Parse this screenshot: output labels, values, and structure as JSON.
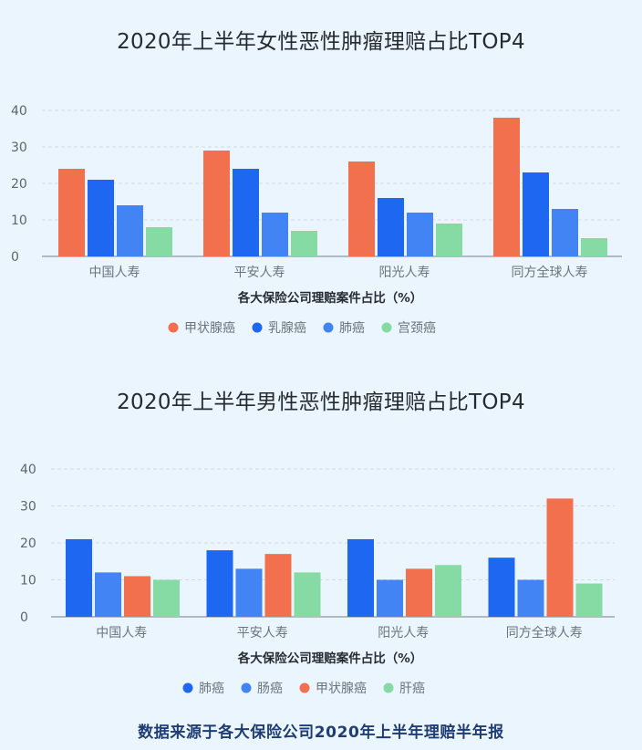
{
  "chart_data": [
    {
      "type": "bar",
      "title": "2020年上半年女性恶性肿瘤理赔占比TOP4",
      "xlabel": "各大保险公司理赔案件占比（%）",
      "ylabel": "",
      "ylim": [
        0,
        40
      ],
      "yticks": [
        0,
        10,
        20,
        30,
        40
      ],
      "grid": true,
      "legend_position": "bottom",
      "categories": [
        "中国人寿",
        "平安人寿",
        "阳光人寿",
        "同方全球人寿"
      ],
      "series": [
        {
          "name": "甲状腺癌",
          "color": "#f2704e",
          "values": [
            24,
            29,
            26,
            38
          ]
        },
        {
          "name": "乳腺癌",
          "color": "#1e67f0",
          "values": [
            21,
            24,
            16,
            23
          ]
        },
        {
          "name": "肺癌",
          "color": "#4384f5",
          "values": [
            14,
            12,
            12,
            13
          ]
        },
        {
          "name": "宫颈癌",
          "color": "#86dba4",
          "values": [
            8,
            7,
            9,
            5
          ]
        }
      ]
    },
    {
      "type": "bar",
      "title": "2020年上半年男性恶性肿瘤理赔占比TOP4",
      "xlabel": "各大保险公司理赔案件占比（%）",
      "ylabel": "",
      "ylim": [
        0,
        40
      ],
      "yticks": [
        0,
        10,
        20,
        30,
        40
      ],
      "grid": true,
      "legend_position": "bottom",
      "categories": [
        "中国人寿",
        "平安人寿",
        "阳光人寿",
        "同方全球人寿"
      ],
      "series": [
        {
          "name": "肺癌",
          "color": "#1e67f0",
          "values": [
            21,
            18,
            21,
            16
          ]
        },
        {
          "name": "肠癌",
          "color": "#4384f5",
          "values": [
            12,
            13,
            10,
            10
          ]
        },
        {
          "name": "甲状腺癌",
          "color": "#f2704e",
          "values": [
            11,
            17,
            13,
            32
          ]
        },
        {
          "name": "肝癌",
          "color": "#86dba4",
          "values": [
            10,
            12,
            14,
            9
          ]
        }
      ]
    }
  ],
  "footer": "数据来源于各大保险公司2020年上半年理赔半年报"
}
